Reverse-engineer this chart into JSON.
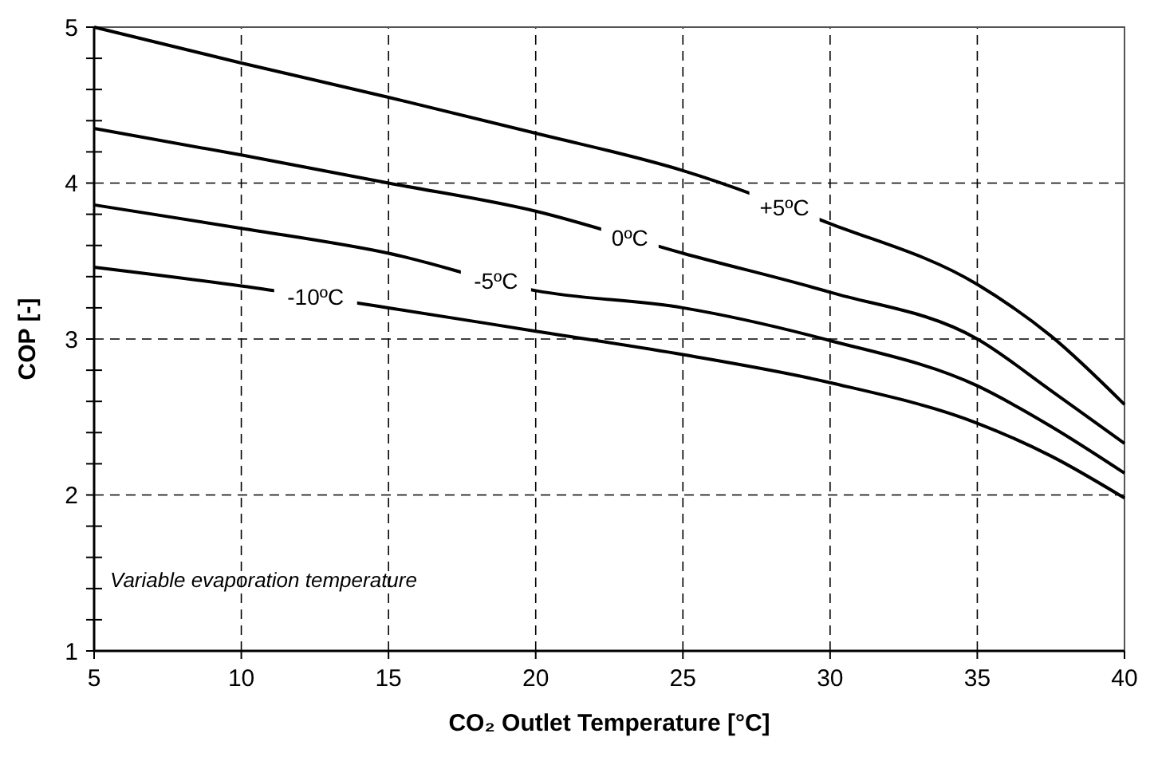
{
  "chart_data": {
    "type": "line",
    "xlabel": "CO₂ Outlet Temperature [°C]",
    "ylabel": "COP [-]",
    "x": [
      5,
      10,
      15,
      20,
      25,
      30,
      35,
      37.5,
      40
    ],
    "series": [
      {
        "name": "+5ºC",
        "color": "#000000",
        "values": [
          5.0,
          4.77,
          4.55,
          4.32,
          4.08,
          3.74,
          3.35,
          3.02,
          2.58
        ]
      },
      {
        "name": "0ºC",
        "color": "#000000",
        "values": [
          4.35,
          4.18,
          4.0,
          3.82,
          3.55,
          3.3,
          3.0,
          2.67,
          2.33
        ]
      },
      {
        "name": "-5ºC",
        "color": "#000000",
        "values": [
          3.86,
          3.71,
          3.55,
          3.31,
          3.2,
          2.99,
          2.7,
          2.44,
          2.14
        ]
      },
      {
        "name": "-10ºC",
        "color": "#000000",
        "values": [
          3.46,
          3.34,
          3.2,
          3.05,
          2.9,
          2.72,
          2.46,
          2.25,
          1.98
        ]
      }
    ],
    "xlim": [
      5,
      40
    ],
    "xticks": [
      5,
      10,
      15,
      20,
      25,
      30,
      35,
      40
    ],
    "ylim": [
      1,
      5
    ],
    "yticks": [
      1,
      {
        "value": 1.2,
        "label": null
      },
      {
        "value": 1.4,
        "label": null
      },
      {
        "value": 1.6,
        "label": null
      },
      {
        "value": 1.8,
        "label": null
      },
      2,
      {
        "value": 2.2,
        "label": null
      },
      {
        "value": 2.4,
        "label": null
      },
      {
        "value": 2.6,
        "label": null
      },
      {
        "value": 2.8,
        "label": null
      },
      3,
      {
        "value": 3.2,
        "label": null
      },
      {
        "value": 3.4,
        "label": null
      },
      {
        "value": 3.6,
        "label": null
      },
      {
        "value": 3.8,
        "label": null
      },
      4,
      {
        "value": 4.2,
        "label": null
      },
      {
        "value": 4.4,
        "label": null
      },
      {
        "value": 4.6,
        "label": null
      },
      {
        "value": 4.8,
        "label": null
      },
      5
    ],
    "grid": true,
    "marker": "none",
    "line_style": "solid",
    "annotations": [
      "Variable evaporation temperature"
    ]
  }
}
